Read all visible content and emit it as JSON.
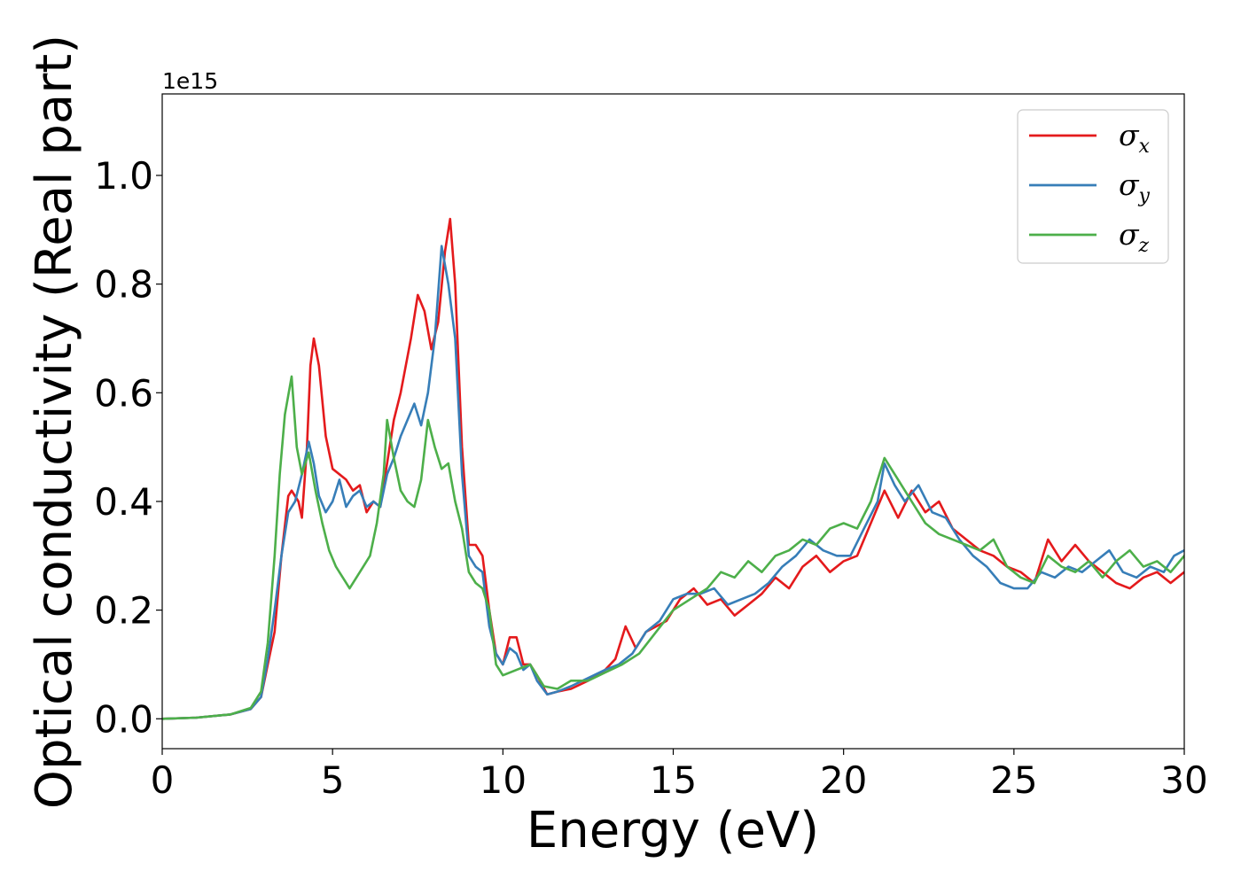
{
  "chart_data": {
    "type": "line",
    "xlabel": "Energy (eV)",
    "ylabel": "Optical conductivity (Real part)",
    "y_offset_text": "1e15",
    "xlim": [
      0,
      30
    ],
    "ylim": [
      -0.055,
      1.15
    ],
    "x_ticks": [
      0,
      5,
      10,
      15,
      20,
      25,
      30
    ],
    "x_tick_labels": [
      "0",
      "5",
      "10",
      "15",
      "20",
      "25",
      "30"
    ],
    "y_ticks": [
      0.0,
      0.2,
      0.4,
      0.6,
      0.8,
      1.0
    ],
    "y_tick_labels": [
      "0.0",
      "0.2",
      "0.4",
      "0.6",
      "0.8",
      "1.0"
    ],
    "grid": false,
    "legend_position": "top-right",
    "series": [
      {
        "name": "σx",
        "symbol": "σ",
        "subscript": "x",
        "color": "#e41a1c",
        "points": [
          [
            0,
            0
          ],
          [
            1,
            0.002
          ],
          [
            2,
            0.008
          ],
          [
            2.6,
            0.018
          ],
          [
            2.9,
            0.04
          ],
          [
            3.1,
            0.1
          ],
          [
            3.3,
            0.16
          ],
          [
            3.5,
            0.3
          ],
          [
            3.7,
            0.41
          ],
          [
            3.8,
            0.42
          ],
          [
            4.0,
            0.4
          ],
          [
            4.1,
            0.37
          ],
          [
            4.25,
            0.5
          ],
          [
            4.35,
            0.65
          ],
          [
            4.45,
            0.7
          ],
          [
            4.6,
            0.65
          ],
          [
            4.8,
            0.52
          ],
          [
            5.0,
            0.46
          ],
          [
            5.2,
            0.45
          ],
          [
            5.4,
            0.44
          ],
          [
            5.6,
            0.42
          ],
          [
            5.8,
            0.43
          ],
          [
            6.0,
            0.38
          ],
          [
            6.2,
            0.4
          ],
          [
            6.4,
            0.39
          ],
          [
            6.6,
            0.47
          ],
          [
            6.8,
            0.55
          ],
          [
            7.0,
            0.6
          ],
          [
            7.3,
            0.7
          ],
          [
            7.5,
            0.78
          ],
          [
            7.7,
            0.75
          ],
          [
            7.9,
            0.68
          ],
          [
            8.1,
            0.73
          ],
          [
            8.3,
            0.86
          ],
          [
            8.45,
            0.92
          ],
          [
            8.6,
            0.8
          ],
          [
            8.8,
            0.5
          ],
          [
            9.0,
            0.32
          ],
          [
            9.2,
            0.32
          ],
          [
            9.4,
            0.3
          ],
          [
            9.6,
            0.2
          ],
          [
            9.8,
            0.12
          ],
          [
            10.0,
            0.1
          ],
          [
            10.2,
            0.15
          ],
          [
            10.4,
            0.15
          ],
          [
            10.6,
            0.1
          ],
          [
            10.8,
            0.1
          ],
          [
            11.0,
            0.08
          ],
          [
            11.3,
            0.045
          ],
          [
            11.6,
            0.05
          ],
          [
            12.0,
            0.055
          ],
          [
            12.5,
            0.07
          ],
          [
            13.0,
            0.09
          ],
          [
            13.3,
            0.11
          ],
          [
            13.6,
            0.17
          ],
          [
            13.9,
            0.13
          ],
          [
            14.2,
            0.16
          ],
          [
            14.5,
            0.17
          ],
          [
            14.8,
            0.18
          ],
          [
            15.2,
            0.22
          ],
          [
            15.6,
            0.24
          ],
          [
            16.0,
            0.21
          ],
          [
            16.4,
            0.22
          ],
          [
            16.8,
            0.19
          ],
          [
            17.2,
            0.21
          ],
          [
            17.6,
            0.23
          ],
          [
            18.0,
            0.26
          ],
          [
            18.4,
            0.24
          ],
          [
            18.8,
            0.28
          ],
          [
            19.2,
            0.3
          ],
          [
            19.6,
            0.27
          ],
          [
            20.0,
            0.29
          ],
          [
            20.4,
            0.3
          ],
          [
            20.8,
            0.36
          ],
          [
            21.2,
            0.42
          ],
          [
            21.6,
            0.37
          ],
          [
            22.0,
            0.42
          ],
          [
            22.4,
            0.38
          ],
          [
            22.8,
            0.4
          ],
          [
            23.2,
            0.35
          ],
          [
            23.6,
            0.33
          ],
          [
            24.0,
            0.31
          ],
          [
            24.4,
            0.3
          ],
          [
            24.8,
            0.28
          ],
          [
            25.2,
            0.27
          ],
          [
            25.6,
            0.25
          ],
          [
            26.0,
            0.33
          ],
          [
            26.4,
            0.29
          ],
          [
            26.8,
            0.32
          ],
          [
            27.2,
            0.29
          ],
          [
            27.6,
            0.27
          ],
          [
            28.0,
            0.25
          ],
          [
            28.4,
            0.24
          ],
          [
            28.8,
            0.26
          ],
          [
            29.2,
            0.27
          ],
          [
            29.6,
            0.25
          ],
          [
            30.0,
            0.27
          ]
        ]
      },
      {
        "name": "σy",
        "symbol": "σ",
        "subscript": "y",
        "color": "#377eb8",
        "points": [
          [
            0,
            0
          ],
          [
            1,
            0.002
          ],
          [
            2,
            0.008
          ],
          [
            2.6,
            0.018
          ],
          [
            2.9,
            0.04
          ],
          [
            3.1,
            0.11
          ],
          [
            3.3,
            0.2
          ],
          [
            3.5,
            0.3
          ],
          [
            3.7,
            0.38
          ],
          [
            3.9,
            0.4
          ],
          [
            4.1,
            0.45
          ],
          [
            4.3,
            0.51
          ],
          [
            4.45,
            0.47
          ],
          [
            4.6,
            0.41
          ],
          [
            4.8,
            0.38
          ],
          [
            5.0,
            0.4
          ],
          [
            5.2,
            0.44
          ],
          [
            5.4,
            0.39
          ],
          [
            5.6,
            0.41
          ],
          [
            5.8,
            0.42
          ],
          [
            6.0,
            0.39
          ],
          [
            6.2,
            0.4
          ],
          [
            6.4,
            0.39
          ],
          [
            6.6,
            0.45
          ],
          [
            6.8,
            0.48
          ],
          [
            7.0,
            0.52
          ],
          [
            7.2,
            0.55
          ],
          [
            7.4,
            0.58
          ],
          [
            7.6,
            0.54
          ],
          [
            7.8,
            0.6
          ],
          [
            8.0,
            0.7
          ],
          [
            8.2,
            0.87
          ],
          [
            8.4,
            0.8
          ],
          [
            8.6,
            0.7
          ],
          [
            8.8,
            0.45
          ],
          [
            9.0,
            0.3
          ],
          [
            9.2,
            0.28
          ],
          [
            9.4,
            0.27
          ],
          [
            9.6,
            0.17
          ],
          [
            9.8,
            0.12
          ],
          [
            10.0,
            0.1
          ],
          [
            10.2,
            0.13
          ],
          [
            10.4,
            0.12
          ],
          [
            10.6,
            0.09
          ],
          [
            10.8,
            0.1
          ],
          [
            11.0,
            0.07
          ],
          [
            11.3,
            0.045
          ],
          [
            11.6,
            0.05
          ],
          [
            12.0,
            0.06
          ],
          [
            12.5,
            0.075
          ],
          [
            13.0,
            0.09
          ],
          [
            13.4,
            0.1
          ],
          [
            13.8,
            0.12
          ],
          [
            14.2,
            0.16
          ],
          [
            14.6,
            0.18
          ],
          [
            15.0,
            0.22
          ],
          [
            15.4,
            0.23
          ],
          [
            15.8,
            0.23
          ],
          [
            16.2,
            0.24
          ],
          [
            16.6,
            0.21
          ],
          [
            17.0,
            0.22
          ],
          [
            17.4,
            0.23
          ],
          [
            17.8,
            0.25
          ],
          [
            18.2,
            0.28
          ],
          [
            18.6,
            0.3
          ],
          [
            19.0,
            0.33
          ],
          [
            19.4,
            0.31
          ],
          [
            19.8,
            0.3
          ],
          [
            20.2,
            0.3
          ],
          [
            20.6,
            0.35
          ],
          [
            21.0,
            0.4
          ],
          [
            21.2,
            0.47
          ],
          [
            21.5,
            0.43
          ],
          [
            21.8,
            0.4
          ],
          [
            22.2,
            0.43
          ],
          [
            22.6,
            0.38
          ],
          [
            23.0,
            0.37
          ],
          [
            23.4,
            0.33
          ],
          [
            23.8,
            0.3
          ],
          [
            24.2,
            0.28
          ],
          [
            24.6,
            0.25
          ],
          [
            25.0,
            0.24
          ],
          [
            25.4,
            0.24
          ],
          [
            25.8,
            0.27
          ],
          [
            26.2,
            0.26
          ],
          [
            26.6,
            0.28
          ],
          [
            27.0,
            0.27
          ],
          [
            27.4,
            0.29
          ],
          [
            27.8,
            0.31
          ],
          [
            28.2,
            0.27
          ],
          [
            28.6,
            0.26
          ],
          [
            29.0,
            0.28
          ],
          [
            29.4,
            0.27
          ],
          [
            29.7,
            0.3
          ],
          [
            30.0,
            0.31
          ]
        ]
      },
      {
        "name": "σz",
        "symbol": "σ",
        "subscript": "z",
        "color": "#4daf4a",
        "points": [
          [
            0,
            0
          ],
          [
            1,
            0.002
          ],
          [
            2,
            0.008
          ],
          [
            2.6,
            0.02
          ],
          [
            2.9,
            0.05
          ],
          [
            3.1,
            0.14
          ],
          [
            3.3,
            0.3
          ],
          [
            3.45,
            0.45
          ],
          [
            3.6,
            0.56
          ],
          [
            3.8,
            0.63
          ],
          [
            3.95,
            0.5
          ],
          [
            4.1,
            0.45
          ],
          [
            4.3,
            0.49
          ],
          [
            4.5,
            0.42
          ],
          [
            4.7,
            0.36
          ],
          [
            4.9,
            0.31
          ],
          [
            5.1,
            0.28
          ],
          [
            5.3,
            0.26
          ],
          [
            5.5,
            0.24
          ],
          [
            5.7,
            0.26
          ],
          [
            5.9,
            0.28
          ],
          [
            6.1,
            0.3
          ],
          [
            6.3,
            0.36
          ],
          [
            6.5,
            0.45
          ],
          [
            6.6,
            0.55
          ],
          [
            6.8,
            0.48
          ],
          [
            7.0,
            0.42
          ],
          [
            7.2,
            0.4
          ],
          [
            7.4,
            0.39
          ],
          [
            7.6,
            0.44
          ],
          [
            7.8,
            0.55
          ],
          [
            8.0,
            0.5
          ],
          [
            8.2,
            0.46
          ],
          [
            8.4,
            0.47
          ],
          [
            8.6,
            0.4
          ],
          [
            8.8,
            0.35
          ],
          [
            9.0,
            0.27
          ],
          [
            9.2,
            0.25
          ],
          [
            9.4,
            0.24
          ],
          [
            9.6,
            0.2
          ],
          [
            9.8,
            0.1
          ],
          [
            10.0,
            0.08
          ],
          [
            10.4,
            0.09
          ],
          [
            10.8,
            0.1
          ],
          [
            11.2,
            0.06
          ],
          [
            11.6,
            0.055
          ],
          [
            12.0,
            0.07
          ],
          [
            12.5,
            0.07
          ],
          [
            13.0,
            0.085
          ],
          [
            13.5,
            0.1
          ],
          [
            14.0,
            0.12
          ],
          [
            14.5,
            0.16
          ],
          [
            15.0,
            0.2
          ],
          [
            15.5,
            0.22
          ],
          [
            16.0,
            0.24
          ],
          [
            16.4,
            0.27
          ],
          [
            16.8,
            0.26
          ],
          [
            17.2,
            0.29
          ],
          [
            17.6,
            0.27
          ],
          [
            18.0,
            0.3
          ],
          [
            18.4,
            0.31
          ],
          [
            18.8,
            0.33
          ],
          [
            19.2,
            0.32
          ],
          [
            19.6,
            0.35
          ],
          [
            20.0,
            0.36
          ],
          [
            20.4,
            0.35
          ],
          [
            20.8,
            0.4
          ],
          [
            21.2,
            0.48
          ],
          [
            21.6,
            0.44
          ],
          [
            22.0,
            0.4
          ],
          [
            22.4,
            0.36
          ],
          [
            22.8,
            0.34
          ],
          [
            23.2,
            0.33
          ],
          [
            23.6,
            0.32
          ],
          [
            24.0,
            0.31
          ],
          [
            24.4,
            0.33
          ],
          [
            24.8,
            0.28
          ],
          [
            25.2,
            0.26
          ],
          [
            25.6,
            0.25
          ],
          [
            26.0,
            0.3
          ],
          [
            26.4,
            0.28
          ],
          [
            26.8,
            0.27
          ],
          [
            27.2,
            0.29
          ],
          [
            27.6,
            0.26
          ],
          [
            28.0,
            0.29
          ],
          [
            28.4,
            0.31
          ],
          [
            28.8,
            0.28
          ],
          [
            29.2,
            0.29
          ],
          [
            29.6,
            0.27
          ],
          [
            30.0,
            0.3
          ]
        ]
      }
    ]
  }
}
